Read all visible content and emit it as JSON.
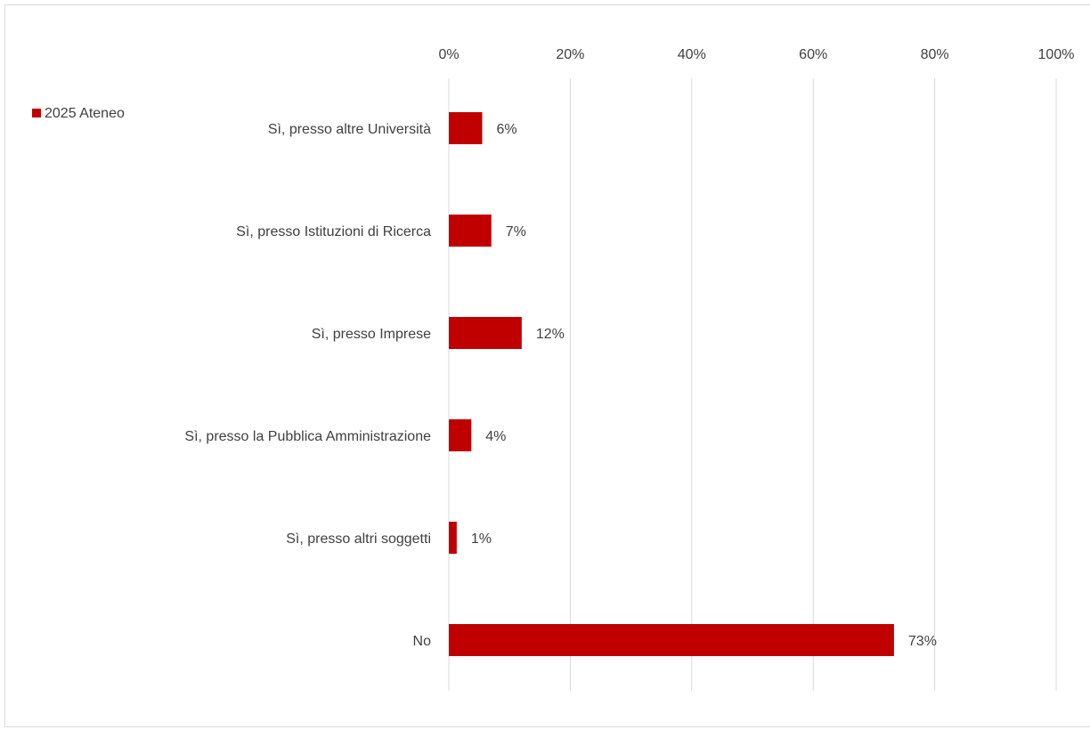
{
  "chart_data": {
    "type": "bar",
    "orientation": "horizontal",
    "categories": [
      "Sì, presso altre Università",
      "Sì, presso Istituzioni di Ricerca",
      "Sì, presso Imprese",
      "Sì, presso la Pubblica Amministrazione",
      "Sì, presso altri soggetti",
      "No"
    ],
    "series": [
      {
        "name": "2025 Ateneo",
        "values": [
          5.5,
          7.0,
          12.0,
          3.7,
          1.3,
          73.3
        ],
        "labels": [
          "6%",
          "7%",
          "12%",
          "4%",
          "1%",
          "73%"
        ],
        "color": "#c00000"
      }
    ],
    "xlim": [
      0,
      100
    ],
    "xticks": [
      0,
      20,
      40,
      60,
      80,
      100
    ],
    "xtick_labels": [
      "0%",
      "20%",
      "40%",
      "60%",
      "80%",
      "100%"
    ],
    "x_axis_position": "top",
    "grid": true,
    "legend_position": "top-left"
  },
  "colors": {
    "bar": "#c00000",
    "grid": "#d9d9d9",
    "text": "#404040"
  }
}
